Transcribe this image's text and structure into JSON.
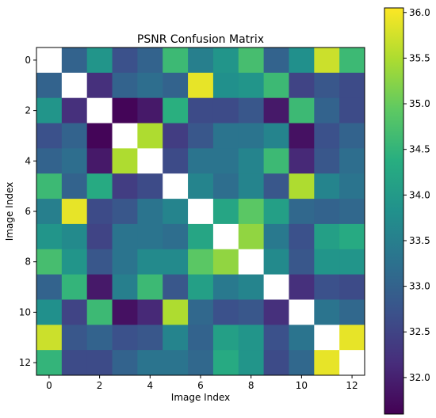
{
  "chart_data": {
    "type": "heatmap",
    "title": "PSNR Confusion Matrix",
    "xlabel": "Image Index",
    "ylabel": "Image Index",
    "x_ticks": [
      "0",
      "2",
      "4",
      "6",
      "8",
      "10",
      "12"
    ],
    "y_ticks": [
      "0",
      "2",
      "4",
      "6",
      "8",
      "10",
      "12"
    ],
    "rows": 13,
    "cols": 13,
    "colormap": "viridis",
    "diagonal_color": "#ffffff",
    "vmin": 31.6,
    "vmax": 36.05,
    "colorbar_ticks": [
      "32.0",
      "32.5",
      "33.0",
      "33.5",
      "34.0",
      "34.5",
      "35.0",
      "35.5",
      "36.0"
    ],
    "matrix": [
      [
        null,
        33.0,
        33.9,
        32.7,
        33.0,
        34.6,
        33.5,
        33.9,
        34.7,
        33.0,
        33.8,
        35.7,
        34.6
      ],
      [
        33.0,
        null,
        32.2,
        33.0,
        33.2,
        33.0,
        35.9,
        33.8,
        33.9,
        34.6,
        32.5,
        32.8,
        32.6
      ],
      [
        33.9,
        32.2,
        null,
        31.65,
        31.9,
        34.4,
        32.6,
        32.6,
        32.8,
        31.9,
        34.6,
        33.0,
        32.6
      ],
      [
        32.7,
        33.0,
        31.65,
        null,
        35.5,
        32.4,
        32.8,
        33.3,
        33.3,
        33.6,
        31.8,
        32.7,
        33.0
      ],
      [
        33.0,
        33.2,
        31.9,
        35.5,
        null,
        32.6,
        33.3,
        33.3,
        33.6,
        34.6,
        32.1,
        32.8,
        33.2
      ],
      [
        34.6,
        33.0,
        34.3,
        32.4,
        32.6,
        null,
        33.6,
        33.2,
        33.6,
        32.8,
        35.5,
        33.6,
        33.3
      ],
      [
        33.5,
        35.9,
        32.6,
        32.8,
        33.3,
        33.6,
        null,
        34.2,
        34.9,
        34.1,
        33.1,
        33.0,
        33.1
      ],
      [
        33.9,
        33.7,
        32.5,
        33.3,
        33.3,
        33.2,
        34.2,
        null,
        35.3,
        33.4,
        32.7,
        34.1,
        34.3
      ],
      [
        34.7,
        33.9,
        32.8,
        33.3,
        33.7,
        33.7,
        34.9,
        35.3,
        null,
        33.7,
        32.8,
        33.9,
        33.9
      ],
      [
        33.0,
        34.5,
        31.9,
        33.5,
        34.6,
        32.8,
        34.1,
        33.4,
        33.6,
        null,
        32.2,
        32.7,
        32.6
      ],
      [
        33.8,
        32.5,
        34.6,
        31.8,
        32.1,
        35.5,
        33.1,
        32.7,
        32.8,
        32.2,
        null,
        33.3,
        33.1
      ],
      [
        35.7,
        32.8,
        33.0,
        32.7,
        32.8,
        33.6,
        33.0,
        34.1,
        33.9,
        32.7,
        33.3,
        null,
        35.9
      ],
      [
        34.5,
        32.6,
        32.6,
        33.0,
        33.3,
        33.3,
        33.1,
        34.3,
        33.9,
        32.6,
        33.1,
        35.9,
        null
      ]
    ]
  }
}
